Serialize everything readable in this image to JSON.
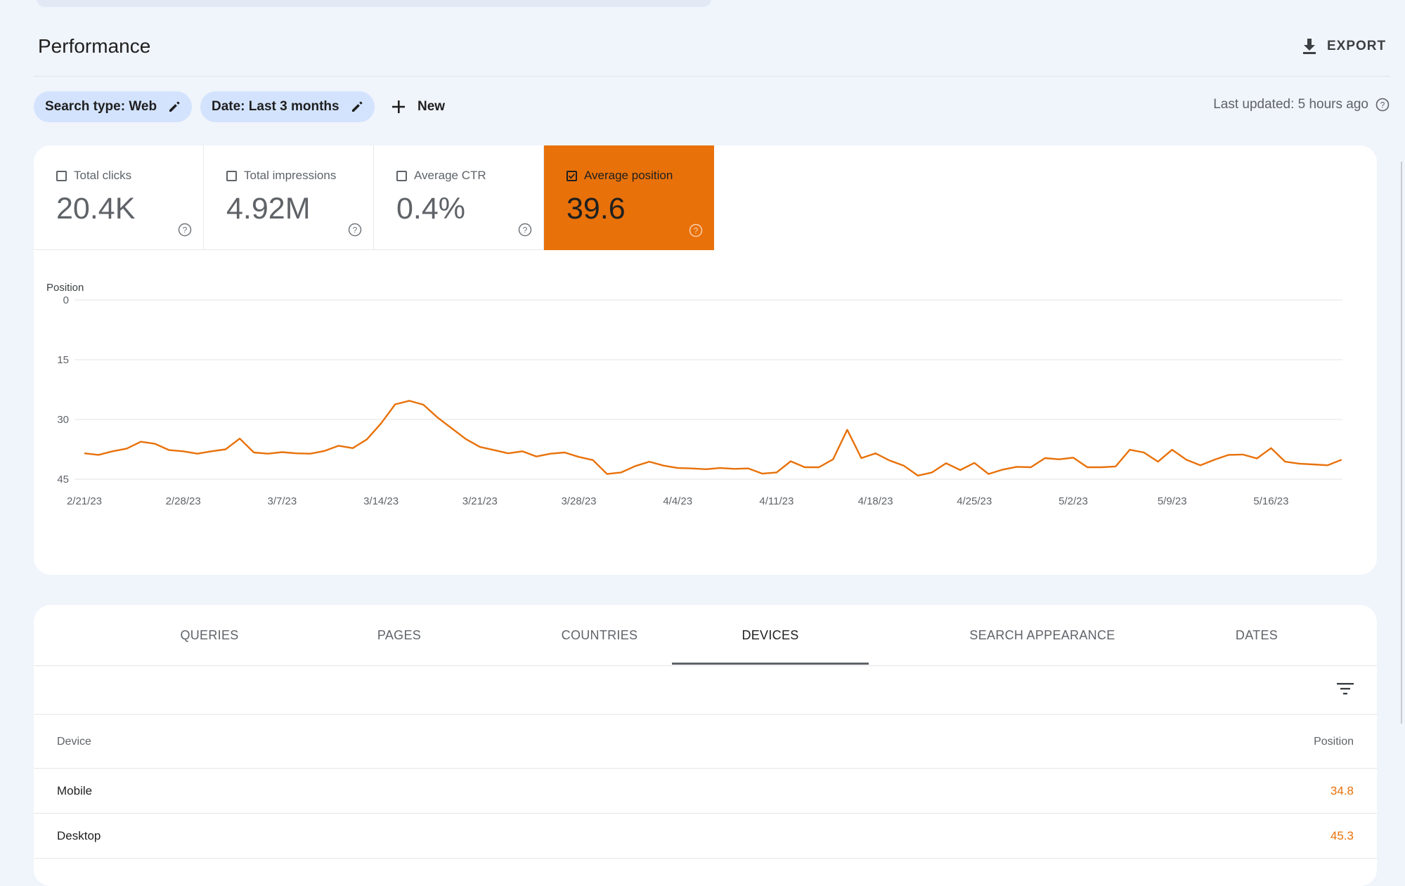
{
  "header": {
    "title": "Performance",
    "export_label": "EXPORT"
  },
  "filters": {
    "chips": [
      {
        "label": "Search type: Web"
      },
      {
        "label": "Date: Last 3 months"
      }
    ],
    "new_label": "New",
    "last_updated": "Last updated: 5 hours ago"
  },
  "metrics": [
    {
      "label": "Total clicks",
      "value": "20.4K",
      "checked": false
    },
    {
      "label": "Total impressions",
      "value": "4.92M",
      "checked": false
    },
    {
      "label": "Average CTR",
      "value": "0.4%",
      "checked": false
    },
    {
      "label": "Average position",
      "value": "39.6",
      "checked": true
    }
  ],
  "colors": {
    "accent": "#e8710a",
    "chip_bg": "#d3e3fd",
    "page_bg": "#f0f4fb"
  },
  "chart_data": {
    "type": "line",
    "ylabel": "Position",
    "y_inverted": true,
    "ylim": [
      0,
      45
    ],
    "yticks": [
      0,
      15,
      30,
      45
    ],
    "grid": true,
    "x_start": "2023-02-21",
    "xticks": [
      "2/21/23",
      "2/28/23",
      "3/7/23",
      "3/14/23",
      "3/21/23",
      "3/28/23",
      "4/4/23",
      "4/11/23",
      "4/18/23",
      "4/25/23",
      "5/2/23",
      "5/9/23",
      "5/16/23"
    ],
    "series": [
      {
        "color": "#e8710a",
        "values": [
          38.5,
          38.9,
          38.0,
          37.3,
          35.6,
          36.1,
          37.7,
          38.0,
          38.6,
          38.0,
          37.5,
          34.8,
          38.3,
          38.6,
          38.2,
          38.5,
          38.6,
          37.9,
          36.6,
          37.2,
          35.0,
          31.0,
          26.2,
          25.3,
          26.3,
          29.5,
          32.2,
          34.9,
          36.9,
          37.7,
          38.5,
          38.0,
          39.3,
          38.6,
          38.3,
          39.4,
          40.2,
          43.7,
          43.3,
          41.7,
          40.6,
          41.6,
          42.2,
          42.3,
          42.5,
          42.2,
          42.4,
          42.3,
          43.6,
          43.3,
          40.5,
          42.0,
          42.0,
          40.0,
          32.6,
          39.7,
          38.5,
          40.3,
          41.6,
          44.1,
          43.3,
          41.0,
          42.7,
          40.9,
          43.7,
          42.6,
          41.9,
          42.0,
          39.7,
          40.0,
          39.6,
          42.0,
          42.0,
          41.8,
          37.6,
          38.3,
          40.6,
          37.6,
          40.1,
          41.5,
          40.1,
          38.9,
          38.8,
          39.8,
          37.2,
          40.6,
          41.1,
          41.3,
          41.5,
          40.1
        ]
      }
    ]
  },
  "tabs": [
    {
      "label": "QUERIES"
    },
    {
      "label": "PAGES"
    },
    {
      "label": "COUNTRIES"
    },
    {
      "label": "DEVICES",
      "active": true
    },
    {
      "label": "SEARCH APPEARANCE"
    },
    {
      "label": "DATES"
    }
  ],
  "table": {
    "headers": [
      "Device",
      "Position"
    ],
    "rows": [
      {
        "device": "Mobile",
        "position": "34.8"
      },
      {
        "device": "Desktop",
        "position": "45.3"
      }
    ]
  }
}
